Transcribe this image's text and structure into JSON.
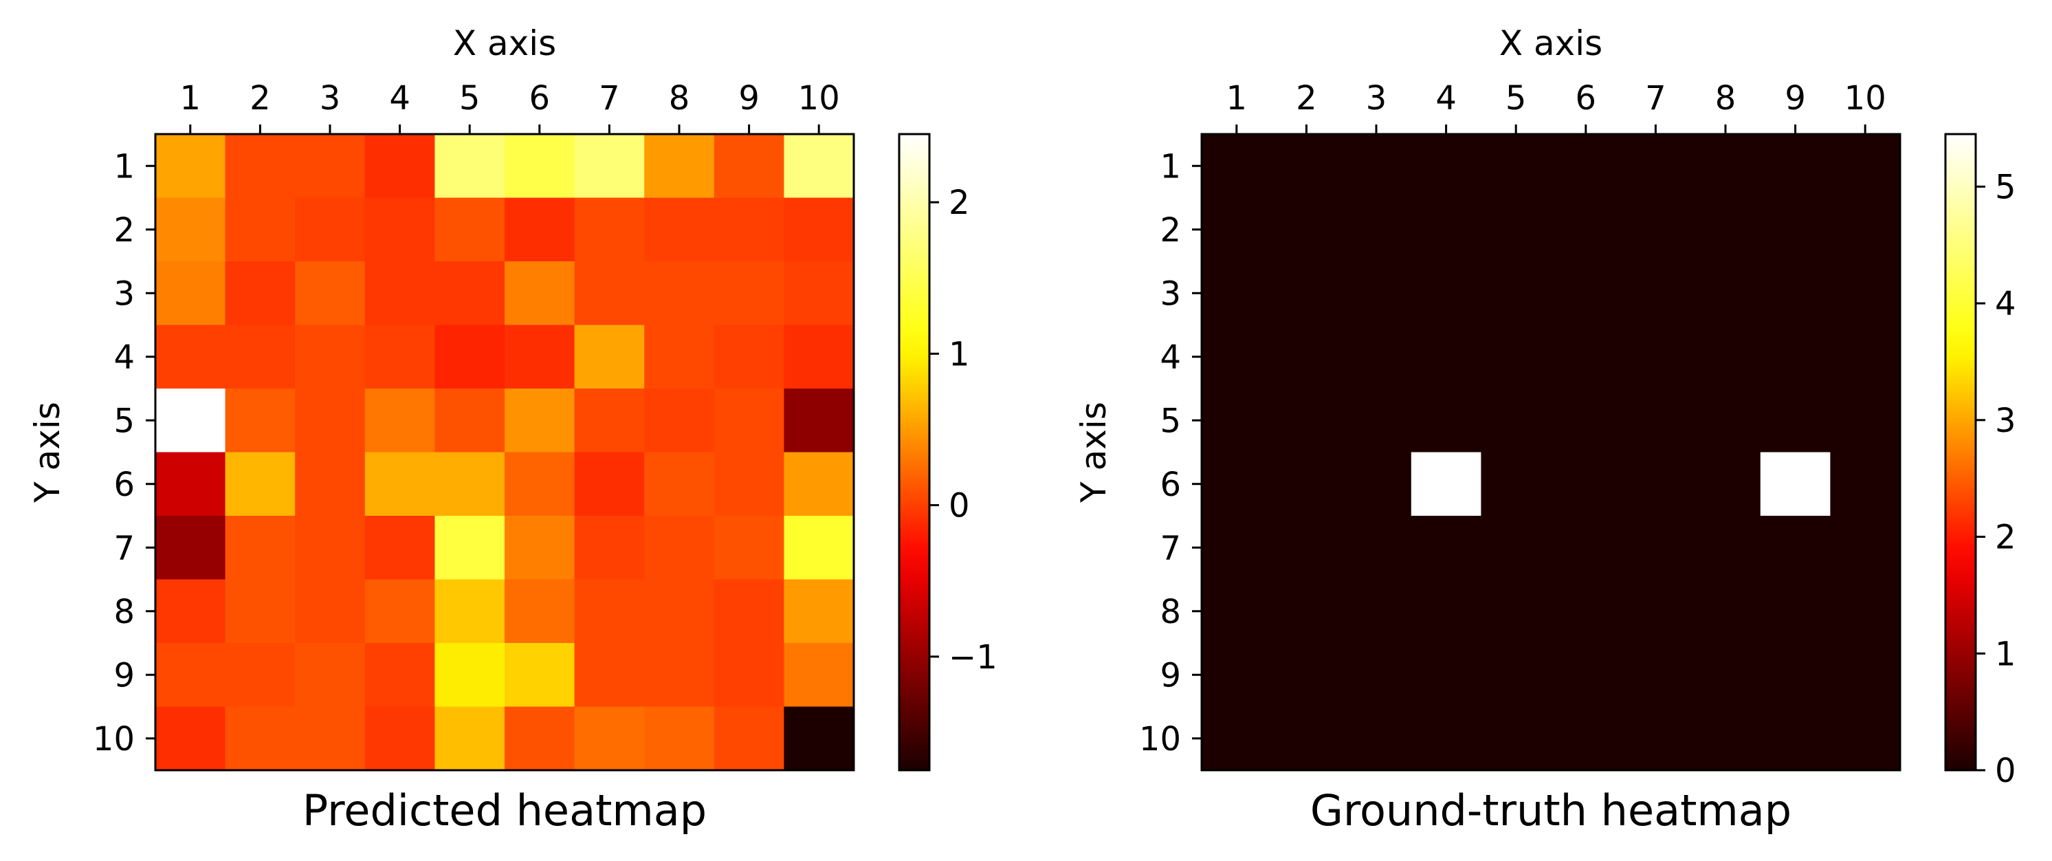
{
  "chart_data": [
    {
      "type": "heatmap",
      "title": "Predicted heatmap",
      "xlabel": "X axis",
      "ylabel": "Y axis",
      "x_categories": [
        "1",
        "2",
        "3",
        "4",
        "5",
        "6",
        "7",
        "8",
        "9",
        "10"
      ],
      "y_categories": [
        "1",
        "2",
        "3",
        "4",
        "5",
        "6",
        "7",
        "8",
        "9",
        "10"
      ],
      "colormap": "hot",
      "colorbar": {
        "range": [
          -1.75,
          2.45
        ],
        "ticks": [
          -1,
          0,
          1,
          2
        ],
        "tick_labels": [
          "−1",
          "0",
          "1",
          "2"
        ]
      },
      "grid": false,
      "values": [
        [
          0.55,
          0.05,
          0.05,
          -0.1,
          1.7,
          1.45,
          1.7,
          0.5,
          0.1,
          1.75
        ],
        [
          0.4,
          0.05,
          0.0,
          -0.05,
          0.1,
          -0.1,
          0.05,
          0.0,
          0.0,
          -0.05
        ],
        [
          0.35,
          -0.05,
          0.15,
          -0.05,
          -0.05,
          0.35,
          0.05,
          0.05,
          0.05,
          0.0
        ],
        [
          0.0,
          0.0,
          0.05,
          0.0,
          -0.15,
          -0.1,
          0.55,
          0.05,
          0.0,
          -0.1
        ],
        [
          2.45,
          0.15,
          0.05,
          0.3,
          0.1,
          0.45,
          0.05,
          0.0,
          0.05,
          -1.05
        ],
        [
          -0.65,
          0.65,
          0.05,
          0.6,
          0.6,
          0.2,
          -0.1,
          0.1,
          0.05,
          0.5
        ],
        [
          -1.0,
          0.1,
          0.05,
          -0.05,
          1.4,
          0.35,
          0.0,
          0.05,
          0.1,
          1.3
        ],
        [
          -0.05,
          0.1,
          0.05,
          0.15,
          0.75,
          0.25,
          0.05,
          0.05,
          0.0,
          0.5
        ],
        [
          0.05,
          0.05,
          0.1,
          0.0,
          0.95,
          0.8,
          0.05,
          0.05,
          0.0,
          0.3
        ],
        [
          -0.1,
          0.1,
          0.1,
          -0.05,
          0.7,
          0.1,
          0.25,
          0.2,
          0.05,
          -1.75
        ]
      ]
    },
    {
      "type": "heatmap",
      "title": "Ground-truth heatmap",
      "xlabel": "X axis",
      "ylabel": "Y axis",
      "x_categories": [
        "1",
        "2",
        "3",
        "4",
        "5",
        "6",
        "7",
        "8",
        "9",
        "10"
      ],
      "y_categories": [
        "1",
        "2",
        "3",
        "4",
        "5",
        "6",
        "7",
        "8",
        "9",
        "10"
      ],
      "colormap": "hot",
      "colorbar": {
        "range": [
          0,
          5.45
        ],
        "ticks": [
          0,
          1,
          2,
          3,
          4,
          5
        ],
        "tick_labels": [
          "0",
          "1",
          "2",
          "3",
          "4",
          "5"
        ]
      },
      "grid": false,
      "values": [
        [
          0,
          0,
          0,
          0,
          0,
          0,
          0,
          0,
          0,
          0
        ],
        [
          0,
          0,
          0,
          0,
          0,
          0,
          0,
          0,
          0,
          0
        ],
        [
          0,
          0,
          0,
          0,
          0,
          0,
          0,
          0,
          0,
          0
        ],
        [
          0,
          0,
          0,
          0,
          0,
          0,
          0,
          0,
          0,
          0
        ],
        [
          0,
          0,
          0,
          0,
          0,
          0,
          0,
          0,
          0,
          0
        ],
        [
          0,
          0,
          0,
          5.45,
          0,
          0,
          0,
          0,
          5.45,
          0
        ],
        [
          0,
          0,
          0,
          0,
          0,
          0,
          0,
          0,
          0,
          0
        ],
        [
          0,
          0,
          0,
          0,
          0,
          0,
          0,
          0,
          0,
          0
        ],
        [
          0,
          0,
          0,
          0,
          0,
          0,
          0,
          0,
          0,
          0
        ],
        [
          0,
          0,
          0,
          0,
          0,
          0,
          0,
          0,
          0,
          0
        ]
      ]
    }
  ]
}
